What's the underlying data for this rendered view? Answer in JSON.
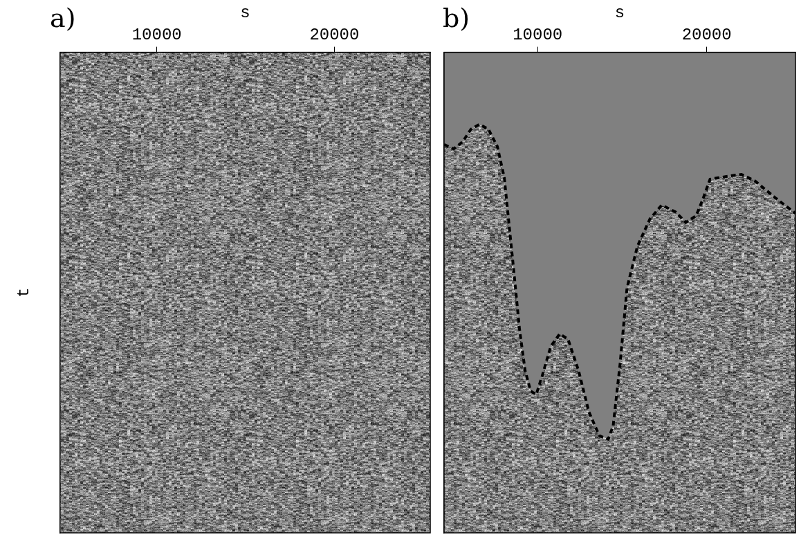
{
  "chart_data": [
    {
      "title": "a)",
      "type": "image",
      "x_label": "s",
      "y_label": "t",
      "xlim": [
        4550,
        25400
      ],
      "xticks": [
        10000,
        20000
      ],
      "ylim": [
        0,
        100
      ],
      "tick_labels": "x",
      "grid": false
    },
    {
      "title": "b)",
      "type": "line",
      "x_label": "s",
      "xlim": [
        4470,
        25250
      ],
      "xticks": [
        10000,
        20000
      ],
      "ylim": [
        0,
        100
      ],
      "tick_labels": "x",
      "grid": false,
      "color": "#000000",
      "line_style": "dashed",
      "x": [
        4470,
        5040,
        5570,
        6060,
        6560,
        7090,
        7620,
        8030,
        8320,
        8610,
        8930,
        9260,
        9590,
        9920,
        10250,
        10780,
        11310,
        11800,
        12420,
        13030,
        13650,
        14180,
        14470,
        14880,
        15290,
        15900,
        16640,
        17340,
        18150,
        18770,
        19380,
        19790,
        20200,
        21230,
        22050,
        22870,
        24100,
        25250
      ],
      "values": [
        19.2,
        20.1,
        18.6,
        16.0,
        15.0,
        16.0,
        19.6,
        26.1,
        36.1,
        46.1,
        57.6,
        66.2,
        70.5,
        71.2,
        67.6,
        61.2,
        58.6,
        59.7,
        66.2,
        74.8,
        79.8,
        80.5,
        77.7,
        64.8,
        49.0,
        40.4,
        34.7,
        31.8,
        33.2,
        35.4,
        34.0,
        30.4,
        26.4,
        25.8,
        25.4,
        26.8,
        30.4,
        33.5
      ]
    }
  ]
}
